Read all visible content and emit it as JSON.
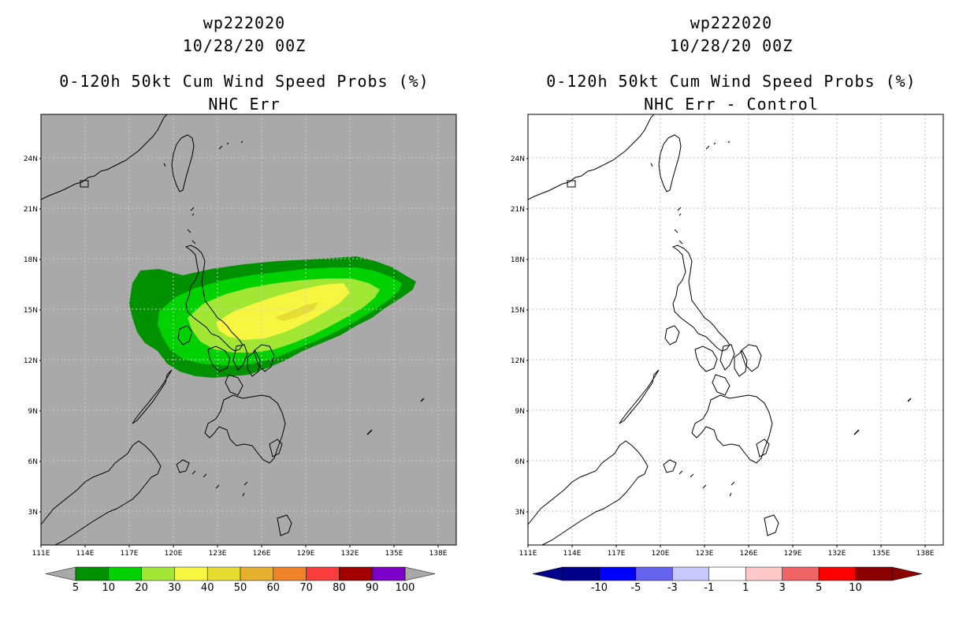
{
  "left_panel": {
    "storm_id": "wp222020",
    "datetime": "10/28/20 00Z",
    "title": "0-120h 50kt Cum Wind Speed Probs (%)",
    "subtitle": "NHC Err",
    "background": "#a9a9a9",
    "colorbar": {
      "labels": [
        "5",
        "10",
        "20",
        "30",
        "40",
        "50",
        "60",
        "70",
        "80",
        "90",
        "100"
      ],
      "colors": [
        "#009100",
        "#00d100",
        "#a0e632",
        "#f6f640",
        "#e6dc32",
        "#e6af2d",
        "#f08228",
        "#fa3c3c",
        "#a50000",
        "#7d00c8"
      ]
    }
  },
  "right_panel": {
    "storm_id": "wp222020",
    "datetime": "10/28/20 00Z",
    "title": "0-120h 50kt Cum Wind Speed Probs (%)",
    "subtitle": "NHC Err - Control",
    "background": "#ffffff",
    "colorbar": {
      "labels": [
        "-10",
        "-5",
        "-3",
        "-1",
        "1",
        "3",
        "5",
        "10"
      ],
      "colors": [
        "#00008c",
        "#0000ff",
        "#6464f0",
        "#c8c8fa",
        "#ffffff",
        "#ffc8c8",
        "#f06464",
        "#ff0000",
        "#8c0000"
      ]
    }
  },
  "axes": {
    "lat_labels": [
      "3N",
      "6N",
      "9N",
      "12N",
      "15N",
      "18N",
      "21N",
      "24N"
    ],
    "lon_labels": [
      "111E",
      "114E",
      "117E",
      "120E",
      "123E",
      "126E",
      "129E",
      "132E",
      "135E",
      "138E"
    ]
  },
  "probability_contours": [
    {
      "level": "5",
      "color": "#009100"
    },
    {
      "level": "10",
      "color": "#00d100"
    },
    {
      "level": "20",
      "color": "#a0e632"
    },
    {
      "level": "30",
      "color": "#f6f640"
    },
    {
      "level": "40",
      "color": "#e6dc32"
    }
  ]
}
